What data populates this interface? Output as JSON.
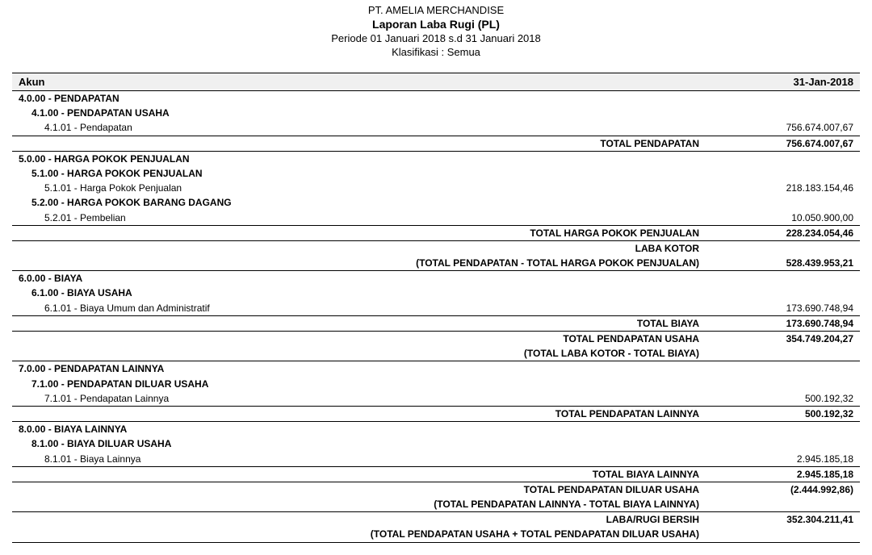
{
  "header": {
    "company": "PT. AMELIA MERCHANDISE",
    "title": "Laporan Laba Rugi (PL)",
    "period": "Periode 01 Januari 2018 s.d 31 Januari 2018",
    "classification": "Klasifikasi : Semua"
  },
  "table_headers": {
    "account": "Akun",
    "date": "31-Jan-2018"
  },
  "rows": [
    {
      "type": "section",
      "indent": 0,
      "label": "4.0.00 - PENDAPATAN"
    },
    {
      "type": "section",
      "indent": 1,
      "label": "4.1.00 - PENDAPATAN USAHA"
    },
    {
      "type": "item",
      "indent": 2,
      "label": "4.1.01 - Pendapatan",
      "amount": "756.674.007,67"
    },
    {
      "type": "total",
      "desc": "TOTAL PENDAPATAN",
      "amount": "756.674.007,67",
      "line_above": true,
      "line_below": true
    },
    {
      "type": "section",
      "indent": 0,
      "label": "5.0.00 - HARGA POKOK PENJUALAN"
    },
    {
      "type": "section",
      "indent": 1,
      "label": "5.1.00 - HARGA POKOK PENJUALAN"
    },
    {
      "type": "item",
      "indent": 2,
      "label": "5.1.01 - Harga Pokok Penjualan",
      "amount": "218.183.154,46"
    },
    {
      "type": "section",
      "indent": 1,
      "label": "5.2.00 - HARGA POKOK BARANG DAGANG"
    },
    {
      "type": "item",
      "indent": 2,
      "label": "5.2.01 - Pembelian",
      "amount": "10.050.900,00"
    },
    {
      "type": "total",
      "desc": "TOTAL HARGA POKOK PENJUALAN",
      "amount": "228.234.054,46",
      "line_above": true,
      "line_below": true
    },
    {
      "type": "total",
      "desc": "LABA KOTOR",
      "amount": ""
    },
    {
      "type": "total",
      "desc": "(TOTAL PENDAPATAN - TOTAL HARGA POKOK PENJUALAN)",
      "amount": "528.439.953,21",
      "line_below": true
    },
    {
      "type": "section",
      "indent": 0,
      "label": "6.0.00 - BIAYA"
    },
    {
      "type": "section",
      "indent": 1,
      "label": "6.1.00 - BIAYA USAHA"
    },
    {
      "type": "item",
      "indent": 2,
      "label": "6.1.01 - Biaya Umum dan Administratif",
      "amount": "173.690.748,94"
    },
    {
      "type": "total",
      "desc": "TOTAL BIAYA",
      "amount": "173.690.748,94",
      "line_above": true,
      "line_below": true
    },
    {
      "type": "total",
      "desc": "TOTAL PENDAPATAN USAHA",
      "amount": "354.749.204,27"
    },
    {
      "type": "total",
      "desc": "(TOTAL LABA KOTOR - TOTAL BIAYA)",
      "amount": "",
      "line_below": true
    },
    {
      "type": "section",
      "indent": 0,
      "label": "7.0.00 - PENDAPATAN LAINNYA"
    },
    {
      "type": "section",
      "indent": 1,
      "label": "7.1.00 - PENDAPATAN DILUAR USAHA"
    },
    {
      "type": "item",
      "indent": 2,
      "label": "7.1.01 - Pendapatan Lainnya",
      "amount": "500.192,32"
    },
    {
      "type": "total",
      "desc": "TOTAL PENDAPATAN LAINNYA",
      "amount": "500.192,32",
      "line_above": true,
      "line_below": true
    },
    {
      "type": "section",
      "indent": 0,
      "label": "8.0.00 - BIAYA LAINNYA"
    },
    {
      "type": "section",
      "indent": 1,
      "label": "8.1.00 - BIAYA DILUAR USAHA"
    },
    {
      "type": "item",
      "indent": 2,
      "label": "8.1.01 - Biaya Lainnya",
      "amount": "2.945.185,18"
    },
    {
      "type": "total",
      "desc": "TOTAL BIAYA LAINNYA",
      "amount": "2.945.185,18",
      "line_above": true,
      "line_below": true
    },
    {
      "type": "total",
      "desc": "TOTAL PENDAPATAN DILUAR USAHA",
      "amount": "(2.444.992,86)"
    },
    {
      "type": "total",
      "desc": "(TOTAL PENDAPATAN LAINNYA - TOTAL BIAYA LAINNYA)",
      "amount": "",
      "line_below": true
    },
    {
      "type": "total",
      "desc": "LABA/RUGI BERSIH",
      "amount": "352.304.211,41"
    },
    {
      "type": "total",
      "desc": "(TOTAL PENDAPATAN USAHA + TOTAL PENDAPATAN DILUAR USAHA)",
      "amount": "",
      "line_below": true
    }
  ]
}
